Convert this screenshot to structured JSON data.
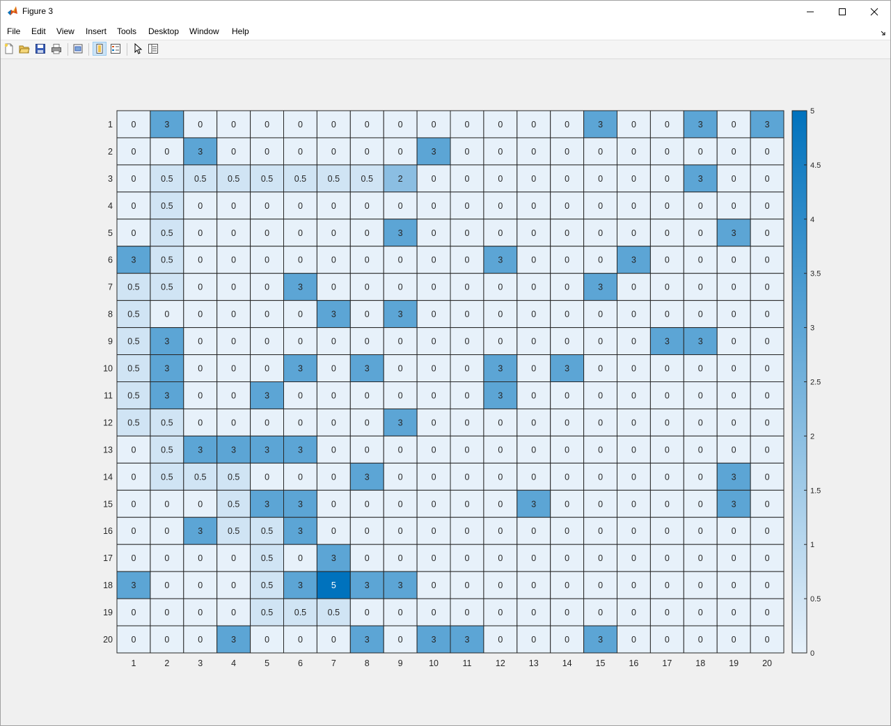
{
  "window": {
    "title": "Figure 3"
  },
  "menu": [
    "File",
    "Edit",
    "View",
    "Insert",
    "Tools",
    "Desktop",
    "Window",
    "Help"
  ],
  "toolbar": [
    {
      "name": "new-figure",
      "icon": "new-file-icon"
    },
    {
      "name": "open-file",
      "icon": "folder-open-icon"
    },
    {
      "name": "save-figure",
      "icon": "save-icon"
    },
    {
      "name": "print-figure",
      "icon": "print-icon"
    },
    {
      "name": "print-preview",
      "icon": "print-preview-icon"
    },
    {
      "name": "link-plot",
      "icon": "link-plot-icon"
    },
    {
      "name": "insert-legend",
      "icon": "legend-icon"
    },
    {
      "name": "edit-plot",
      "icon": "pointer-icon"
    },
    {
      "name": "property-inspector",
      "icon": "property-inspector-icon"
    }
  ],
  "colors": {
    "accent": "#0072bd",
    "low": "#e7f1fa",
    "high": "#0072bd"
  },
  "chart_data": {
    "type": "heatmap",
    "title": "",
    "xlabel": "",
    "ylabel": "",
    "x_labels": [
      "1",
      "2",
      "3",
      "4",
      "5",
      "6",
      "7",
      "8",
      "9",
      "10",
      "11",
      "12",
      "13",
      "14",
      "15",
      "16",
      "17",
      "18",
      "19",
      "20"
    ],
    "y_labels": [
      "1",
      "2",
      "3",
      "4",
      "5",
      "6",
      "7",
      "8",
      "9",
      "10",
      "11",
      "12",
      "13",
      "14",
      "15",
      "16",
      "17",
      "18",
      "19",
      "20"
    ],
    "values": [
      [
        0,
        3,
        0,
        0,
        0,
        0,
        0,
        0,
        0,
        0,
        0,
        0,
        0,
        0,
        3,
        0,
        0,
        3,
        0,
        3
      ],
      [
        0,
        0,
        3,
        0,
        0,
        0,
        0,
        0,
        0,
        3,
        0,
        0,
        0,
        0,
        0,
        0,
        0,
        0,
        0,
        0
      ],
      [
        0,
        0.5,
        0.5,
        0.5,
        0.5,
        0.5,
        0.5,
        0.5,
        2,
        0,
        0,
        0,
        0,
        0,
        0,
        0,
        0,
        3,
        0,
        0
      ],
      [
        0,
        0.5,
        0,
        0,
        0,
        0,
        0,
        0,
        0,
        0,
        0,
        0,
        0,
        0,
        0,
        0,
        0,
        0,
        0,
        0
      ],
      [
        0,
        0.5,
        0,
        0,
        0,
        0,
        0,
        0,
        3,
        0,
        0,
        0,
        0,
        0,
        0,
        0,
        0,
        0,
        3,
        0
      ],
      [
        3,
        0.5,
        0,
        0,
        0,
        0,
        0,
        0,
        0,
        0,
        0,
        3,
        0,
        0,
        0,
        3,
        0,
        0,
        0,
        0
      ],
      [
        0.5,
        0.5,
        0,
        0,
        0,
        3,
        0,
        0,
        0,
        0,
        0,
        0,
        0,
        0,
        3,
        0,
        0,
        0,
        0,
        0
      ],
      [
        0.5,
        0,
        0,
        0,
        0,
        0,
        3,
        0,
        3,
        0,
        0,
        0,
        0,
        0,
        0,
        0,
        0,
        0,
        0,
        0
      ],
      [
        0.5,
        3,
        0,
        0,
        0,
        0,
        0,
        0,
        0,
        0,
        0,
        0,
        0,
        0,
        0,
        0,
        3,
        3,
        0,
        0
      ],
      [
        0.5,
        3,
        0,
        0,
        0,
        3,
        0,
        3,
        0,
        0,
        0,
        3,
        0,
        3,
        0,
        0,
        0,
        0,
        0,
        0
      ],
      [
        0.5,
        3,
        0,
        0,
        3,
        0,
        0,
        0,
        0,
        0,
        0,
        3,
        0,
        0,
        0,
        0,
        0,
        0,
        0,
        0
      ],
      [
        0.5,
        0.5,
        0,
        0,
        0,
        0,
        0,
        0,
        3,
        0,
        0,
        0,
        0,
        0,
        0,
        0,
        0,
        0,
        0,
        0
      ],
      [
        0,
        0.5,
        3,
        3,
        3,
        3,
        0,
        0,
        0,
        0,
        0,
        0,
        0,
        0,
        0,
        0,
        0,
        0,
        0,
        0
      ],
      [
        0,
        0.5,
        0.5,
        0.5,
        0,
        0,
        0,
        3,
        0,
        0,
        0,
        0,
        0,
        0,
        0,
        0,
        0,
        0,
        3,
        0
      ],
      [
        0,
        0,
        0,
        0.5,
        3,
        3,
        0,
        0,
        0,
        0,
        0,
        0,
        3,
        0,
        0,
        0,
        0,
        0,
        3,
        0
      ],
      [
        0,
        0,
        3,
        0.5,
        0.5,
        3,
        0,
        0,
        0,
        0,
        0,
        0,
        0,
        0,
        0,
        0,
        0,
        0,
        0,
        0
      ],
      [
        0,
        0,
        0,
        0,
        0.5,
        0,
        3,
        0,
        0,
        0,
        0,
        0,
        0,
        0,
        0,
        0,
        0,
        0,
        0,
        0
      ],
      [
        3,
        0,
        0,
        0,
        0.5,
        3,
        5,
        3,
        3,
        0,
        0,
        0,
        0,
        0,
        0,
        0,
        0,
        0,
        0,
        0
      ],
      [
        0,
        0,
        0,
        0,
        0.5,
        0.5,
        0.5,
        0,
        0,
        0,
        0,
        0,
        0,
        0,
        0,
        0,
        0,
        0,
        0,
        0
      ],
      [
        0,
        0,
        0,
        3,
        0,
        0,
        0,
        3,
        0,
        3,
        3,
        0,
        0,
        0,
        3,
        0,
        0,
        0,
        0,
        0
      ]
    ],
    "color_range": [
      0,
      5
    ],
    "colorbar_ticks": [
      "0",
      "0.5",
      "1",
      "1.5",
      "2",
      "2.5",
      "3",
      "3.5",
      "4",
      "4.5",
      "5"
    ],
    "grid": true
  }
}
